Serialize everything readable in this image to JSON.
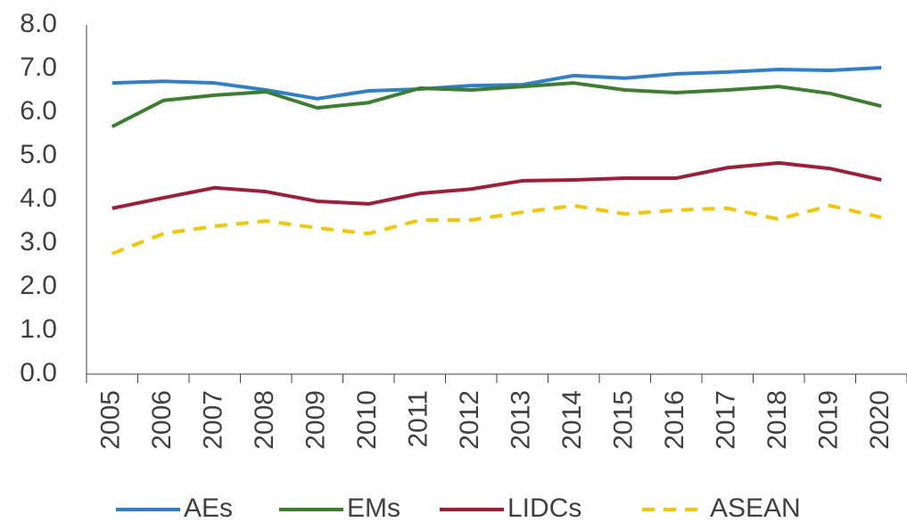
{
  "chart_data": {
    "type": "line",
    "categories": [
      "2005",
      "2006",
      "2007",
      "2008",
      "2009",
      "2010",
      "2011",
      "2012",
      "2013",
      "2014",
      "2015",
      "2016",
      "2017",
      "2018",
      "2019",
      "2020"
    ],
    "series": [
      {
        "name": "AEs",
        "color": "#2f7fcf",
        "dashed": false,
        "values": [
          6.67,
          6.71,
          6.67,
          6.51,
          6.31,
          6.49,
          6.53,
          6.61,
          6.63,
          6.84,
          6.78,
          6.88,
          6.92,
          6.98,
          6.96,
          7.02
        ]
      },
      {
        "name": "EMs",
        "color": "#3b7f2e",
        "dashed": false,
        "values": [
          5.67,
          6.27,
          6.39,
          6.47,
          6.1,
          6.22,
          6.55,
          6.51,
          6.59,
          6.67,
          6.51,
          6.45,
          6.51,
          6.59,
          6.43,
          6.14
        ]
      },
      {
        "name": "LIDCs",
        "color": "#a21c36",
        "dashed": false,
        "values": [
          3.8,
          4.04,
          4.27,
          4.18,
          3.96,
          3.9,
          4.14,
          4.24,
          4.43,
          4.45,
          4.49,
          4.49,
          4.73,
          4.84,
          4.71,
          4.45
        ]
      },
      {
        "name": "ASEAN",
        "color": "#f7c600",
        "dashed": true,
        "values": [
          2.76,
          3.22,
          3.39,
          3.51,
          3.35,
          3.22,
          3.53,
          3.53,
          3.71,
          3.86,
          3.67,
          3.76,
          3.8,
          3.55,
          3.86,
          3.59
        ]
      }
    ],
    "ylim": [
      0,
      8
    ],
    "yticks": [
      {
        "value": 0,
        "label": "0.0"
      },
      {
        "value": 1,
        "label": "1.0"
      },
      {
        "value": 2,
        "label": "2.0"
      },
      {
        "value": 3,
        "label": "3.0"
      },
      {
        "value": 4,
        "label": "4.0"
      },
      {
        "value": 5,
        "label": "5.0"
      },
      {
        "value": 6,
        "label": "6.0"
      },
      {
        "value": 7,
        "label": "7.0"
      },
      {
        "value": 8,
        "label": "8.0"
      }
    ],
    "grid": false,
    "legend": "bottom"
  }
}
